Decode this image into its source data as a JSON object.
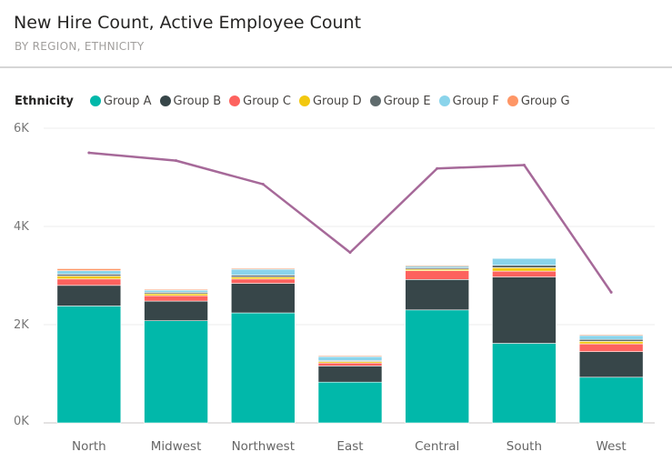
{
  "header": {
    "title": "New Hire Count, Active Employee Count",
    "subtitle": "BY REGION, ETHNICITY"
  },
  "legend": {
    "title": "Ethnicity",
    "items": [
      {
        "label": "Group A",
        "color": "#01b8aa"
      },
      {
        "label": "Group B",
        "color": "#374649"
      },
      {
        "label": "Group C",
        "color": "#fd625e"
      },
      {
        "label": "Group D",
        "color": "#f2c80f"
      },
      {
        "label": "Group E",
        "color": "#5f6b6d"
      },
      {
        "label": "Group F",
        "color": "#8ad4eb"
      },
      {
        "label": "Group G",
        "color": "#fe9666"
      }
    ]
  },
  "chart_data": {
    "type": "bar",
    "subtype": "stacked-column-with-line",
    "title": "New Hire Count, Active Employee Count",
    "subtitle": "BY REGION, ETHNICITY",
    "categories": [
      "North",
      "Midwest",
      "Northwest",
      "East",
      "Central",
      "South",
      "West"
    ],
    "ylim": [
      0,
      6000
    ],
    "yticks": [
      0,
      2000,
      4000,
      6000
    ],
    "ytick_labels": [
      "0K",
      "2K",
      "4K",
      "6K"
    ],
    "grid": true,
    "legend_position": "top-left",
    "series": [
      {
        "name": "Group A",
        "color": "#01b8aa",
        "values": [
          2380,
          2080,
          2240,
          830,
          2300,
          1620,
          930
        ]
      },
      {
        "name": "Group B",
        "color": "#374649",
        "values": [
          420,
          400,
          600,
          330,
          620,
          1350,
          520
        ]
      },
      {
        "name": "Group C",
        "color": "#fd625e",
        "values": [
          130,
          110,
          90,
          60,
          180,
          120,
          160
        ]
      },
      {
        "name": "Group D",
        "color": "#f2c80f",
        "values": [
          60,
          40,
          40,
          30,
          30,
          70,
          50
        ]
      },
      {
        "name": "Group E",
        "color": "#5f6b6d",
        "values": [
          40,
          30,
          40,
          20,
          30,
          50,
          40
        ]
      },
      {
        "name": "Group F",
        "color": "#8ad4eb",
        "values": [
          70,
          40,
          120,
          80,
          30,
          140,
          80
        ]
      },
      {
        "name": "Group G",
        "color": "#fe9666",
        "values": [
          40,
          20,
          20,
          20,
          20,
          10,
          20
        ]
      }
    ],
    "line": {
      "name": "Active Employee Count",
      "color": "#a66999",
      "values": [
        5500,
        5340,
        4860,
        3470,
        5180,
        5250,
        2660
      ]
    }
  }
}
